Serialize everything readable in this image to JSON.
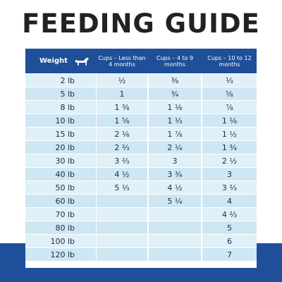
{
  "title": "FEEDING GUIDE",
  "header": {
    "weight": "Weight",
    "col1": "Cups – Less than 4 months",
    "col2": "Cups – 4 to 9 months",
    "col3": "Cups – 10 to 12 months"
  },
  "rows": [
    {
      "weight": "2 lb",
      "c1": "½",
      "c2": "⅜",
      "c3": "⅓"
    },
    {
      "weight": "5 lb",
      "c1": "1",
      "c2": "¾",
      "c3": "⅝"
    },
    {
      "weight": "8 lb",
      "c1": "1 ⅜",
      "c2": "1 ⅛",
      "c3": "⅞"
    },
    {
      "weight": "10 lb",
      "c1": "1 ⅝",
      "c2": "1 ⅓",
      "c3": "1 ⅛"
    },
    {
      "weight": "15 lb",
      "c1": "2 ⅛",
      "c2": "1 ⅞",
      "c3": "1 ½"
    },
    {
      "weight": "20 lb",
      "c1": "2 ⅔",
      "c2": "2 ¼",
      "c3": "1 ¾"
    },
    {
      "weight": "30 lb",
      "c1": "3 ⅔",
      "c2": "3",
      "c3": "2 ½"
    },
    {
      "weight": "40 lb",
      "c1": "4 ½",
      "c2": "3 ¾",
      "c3": "3"
    },
    {
      "weight": "50 lb",
      "c1": "5 ⅓",
      "c2": "4 ½",
      "c3": "3 ⅔"
    },
    {
      "weight": "60 lb",
      "c1": "",
      "c2": "5 ¼",
      "c3": "4"
    },
    {
      "weight": "70 lb",
      "c1": "",
      "c2": "",
      "c3": "4 ⅔"
    },
    {
      "weight": "80 lb",
      "c1": "",
      "c2": "",
      "c3": "5"
    },
    {
      "weight": "100 lb",
      "c1": "",
      "c2": "",
      "c3": "6"
    },
    {
      "weight": "120 lb",
      "c1": "",
      "c2": "",
      "c3": "7"
    }
  ],
  "icons": {
    "weight_header": "dog-icon"
  },
  "colors": {
    "header_bg": "#1e4f98",
    "cell_light": "#cfe6f3",
    "cell_lighter": "#dff0f8",
    "band": "#1d4f9a",
    "text": "#1a2b45"
  }
}
